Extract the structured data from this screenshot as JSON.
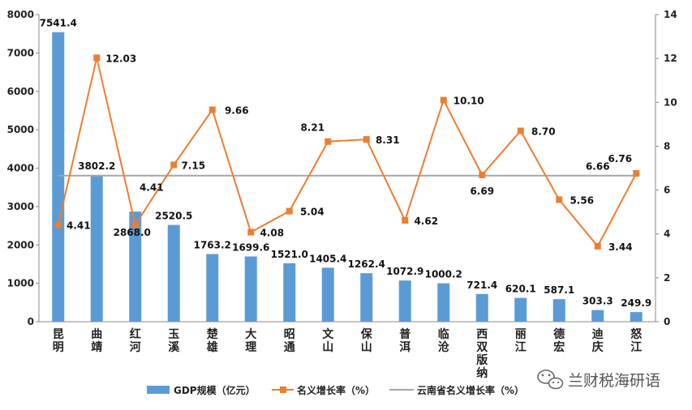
{
  "chart_data": {
    "type": "bar",
    "categories": [
      "昆明",
      "曲靖",
      "红河",
      "玉溪",
      "楚雄",
      "大理",
      "昭通",
      "文山",
      "保山",
      "普洱",
      "临沧",
      "西双版纳",
      "丽江",
      "德宏",
      "迪庆",
      "怒江"
    ],
    "series": [
      {
        "name": "GDP规模（亿元）",
        "type": "bar",
        "axis": "left",
        "color": "#5b9bd5",
        "values": [
          7541.4,
          3802.2,
          2868.0,
          2520.5,
          1763.2,
          1699.6,
          1521.0,
          1405.4,
          1262.4,
          1072.9,
          1000.2,
          721.4,
          620.1,
          587.1,
          303.3,
          249.9
        ],
        "labels": [
          "7541.4",
          "3802.2",
          "2868.0",
          "2520.5",
          "1763.2",
          "1699.6",
          "1521.0",
          "1405.4",
          "1262.4",
          "1072.9",
          "1000.2",
          "721.4",
          "620.1",
          "587.1",
          "303.3",
          "249.9"
        ]
      },
      {
        "name": "名义增长率（%）",
        "type": "line",
        "axis": "right",
        "color": "#ed7d31",
        "values": [
          4.41,
          12.03,
          4.41,
          7.15,
          9.66,
          4.08,
          5.04,
          8.21,
          8.31,
          4.62,
          10.1,
          6.69,
          8.7,
          5.56,
          3.44,
          6.76
        ],
        "labels": [
          "4.41",
          "12.03",
          "4.41",
          "7.15",
          "9.66",
          "4.08",
          "5.04",
          "8.21",
          "8.31",
          "4.62",
          "10.10",
          "6.69",
          "8.70",
          "5.56",
          "3.44",
          "6.76"
        ]
      },
      {
        "name": "云南省名义增长率（%）",
        "type": "reference-line",
        "axis": "right",
        "color": "#a6a6a6",
        "value": 6.66,
        "label": "6.66"
      }
    ],
    "y_left": {
      "min": 0,
      "max": 8000,
      "step": 1000,
      "ticks": [
        "0",
        "1000",
        "2000",
        "3000",
        "4000",
        "5000",
        "6000",
        "7000",
        "8000"
      ]
    },
    "y_right": {
      "min": 0,
      "max": 14,
      "step": 2,
      "ticks": [
        "0",
        "2",
        "4",
        "6",
        "8",
        "10",
        "12",
        "14"
      ]
    },
    "title": "",
    "xlabel": "",
    "ylabel": "",
    "grid": false,
    "legend": "bottom"
  },
  "watermark": {
    "text": "兰财税海研语",
    "icon": "wechat-icon"
  }
}
